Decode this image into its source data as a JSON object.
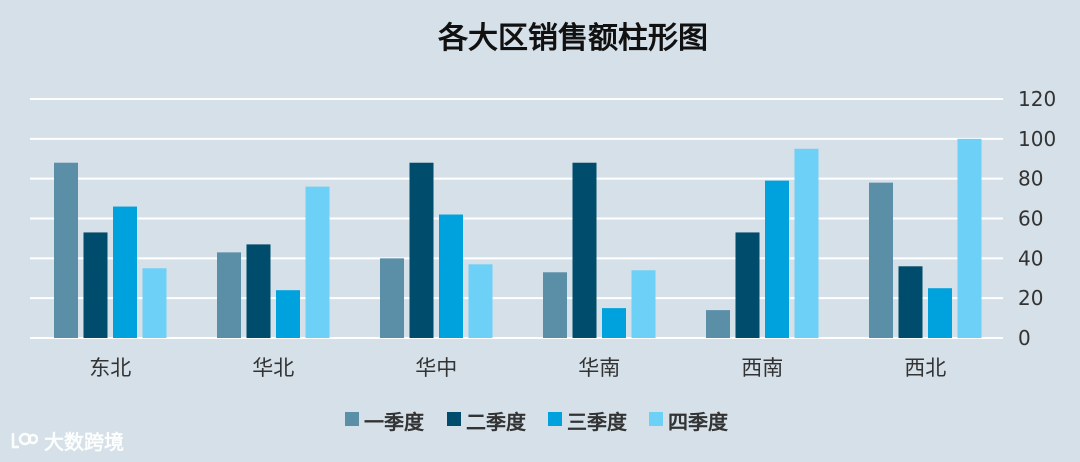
{
  "colors": {
    "background": "#d5e0e8",
    "gridline": "#ffffff",
    "text": "#333333",
    "title": "#111111"
  },
  "chart_data": {
    "type": "bar",
    "title": "各大区销售额柱形图",
    "xlabel": "",
    "ylabel": "",
    "categories": [
      "东北",
      "华北",
      "华中",
      "华南",
      "西南",
      "西北"
    ],
    "series": [
      {
        "name": "一季度",
        "color": "#5b8fa8",
        "values": [
          88,
          43,
          40,
          33,
          14,
          78
        ]
      },
      {
        "name": "二季度",
        "color": "#004c6c",
        "values": [
          53,
          47,
          88,
          88,
          53,
          36
        ]
      },
      {
        "name": "三季度",
        "color": "#00a2dd",
        "values": [
          66,
          24,
          62,
          15,
          79,
          25
        ]
      },
      {
        "name": "四季度",
        "color": "#6dd0f7",
        "values": [
          35,
          76,
          37,
          34,
          95,
          100
        ]
      }
    ],
    "ylim": [
      0,
      120
    ],
    "yticks": [
      "0",
      "20",
      "40",
      "60",
      "80",
      "100",
      "120"
    ],
    "y_axis_position": "right",
    "grid": true,
    "legend_position": "bottom"
  },
  "watermark": {
    "text": "大数跨境"
  }
}
